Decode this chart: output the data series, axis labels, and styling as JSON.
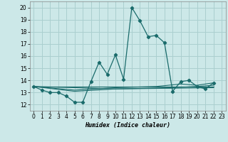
{
  "xlabel": "Humidex (Indice chaleur)",
  "background_color": "#cce8e8",
  "grid_color": "#aacfcf",
  "line_color": "#1a6b6b",
  "xlim": [
    -0.5,
    23.5
  ],
  "ylim": [
    11.5,
    20.5
  ],
  "yticks": [
    12,
    13,
    14,
    15,
    16,
    17,
    18,
    19,
    20
  ],
  "xticks": [
    0,
    1,
    2,
    3,
    4,
    5,
    6,
    7,
    8,
    9,
    10,
    11,
    12,
    13,
    14,
    15,
    16,
    17,
    18,
    19,
    20,
    21,
    22,
    23
  ],
  "main_series_x": [
    0,
    1,
    2,
    3,
    4,
    5,
    6,
    7,
    8,
    9,
    10,
    11,
    12,
    13,
    14,
    15,
    16,
    17,
    18,
    19,
    20,
    21,
    22
  ],
  "main_series_y": [
    13.5,
    13.2,
    13.0,
    13.0,
    12.7,
    12.2,
    12.2,
    13.9,
    15.5,
    14.5,
    16.1,
    14.1,
    20.0,
    18.9,
    17.6,
    17.7,
    17.1,
    13.1,
    13.9,
    14.0,
    13.5,
    13.3,
    13.8
  ],
  "flat_lines": [
    {
      "x": [
        0,
        22
      ],
      "y": [
        13.5,
        13.5
      ]
    },
    {
      "x": [
        0,
        10,
        22
      ],
      "y": [
        13.5,
        13.3,
        13.4
      ]
    },
    {
      "x": [
        0,
        5,
        10,
        17,
        20,
        22
      ],
      "y": [
        13.5,
        13.1,
        13.3,
        13.4,
        13.5,
        13.6
      ]
    },
    {
      "x": [
        0,
        5,
        10,
        15,
        18,
        20,
        22
      ],
      "y": [
        13.5,
        13.2,
        13.4,
        13.5,
        13.7,
        13.6,
        13.8
      ]
    }
  ]
}
